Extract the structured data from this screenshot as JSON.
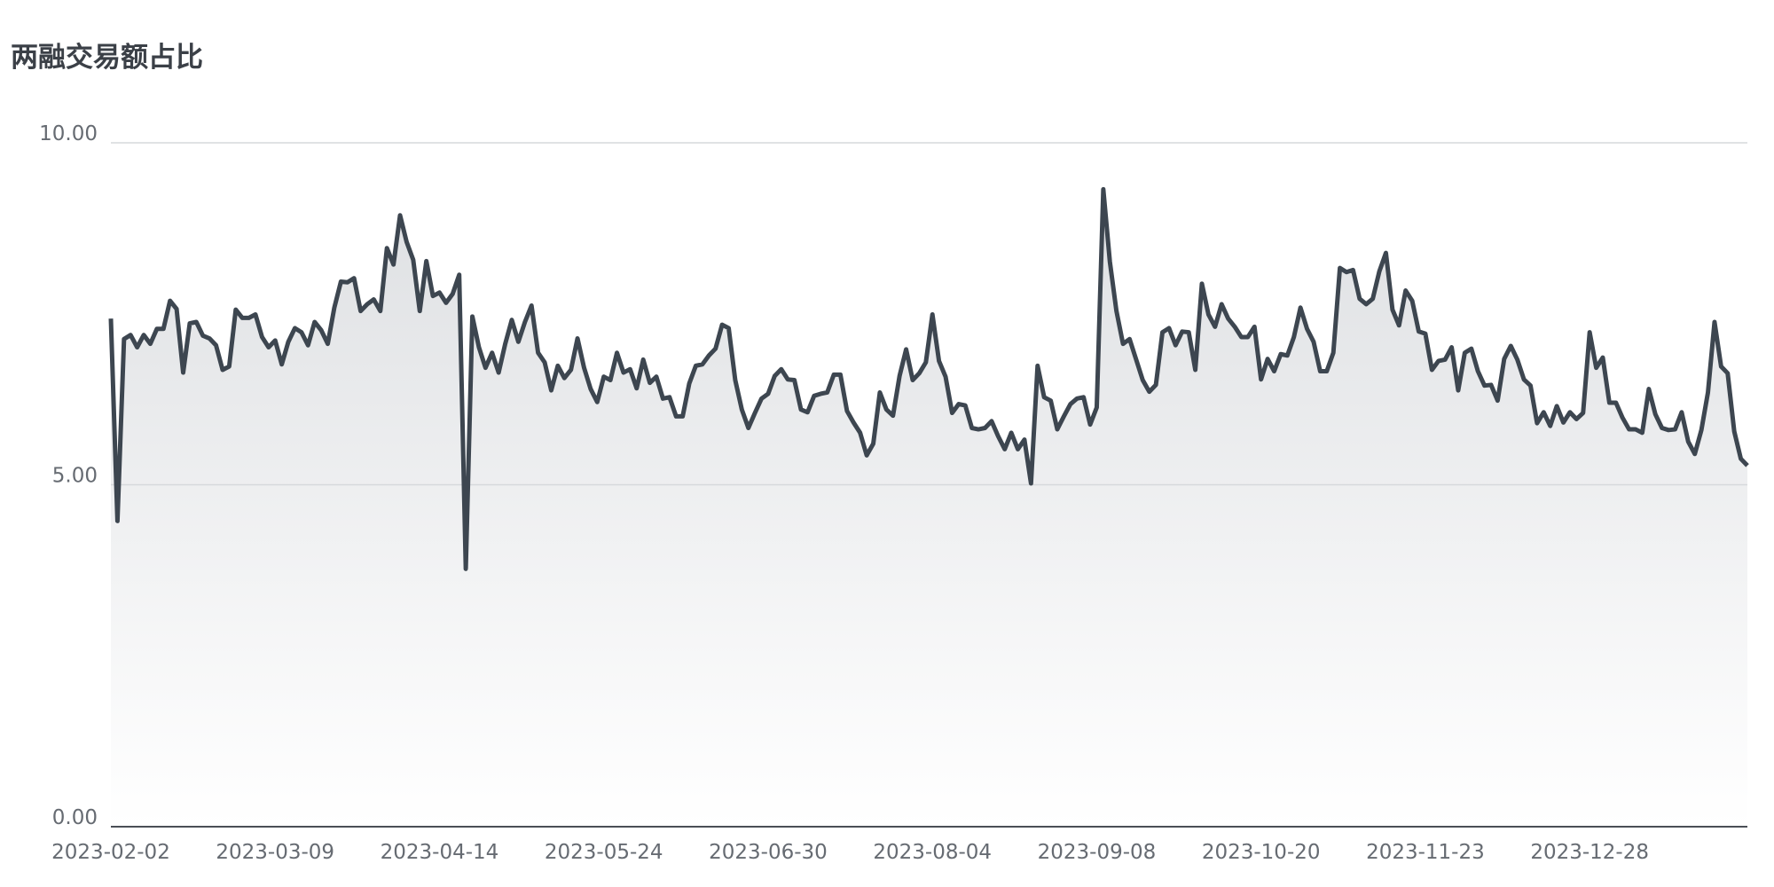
{
  "chart_data": {
    "type": "area",
    "title": "两融交易额占比",
    "categories": [
      "2023-02-02",
      null,
      null,
      null,
      null,
      null,
      null,
      null,
      null,
      null,
      null,
      null,
      null,
      null,
      null,
      null,
      null,
      null,
      null,
      null,
      null,
      null,
      null,
      null,
      null,
      "2023-03-09",
      null,
      null,
      null,
      null,
      null,
      null,
      null,
      null,
      null,
      null,
      null,
      null,
      null,
      null,
      null,
      null,
      null,
      null,
      null,
      null,
      null,
      null,
      null,
      null,
      "2023-04-14",
      null,
      null,
      null,
      null,
      null,
      null,
      null,
      null,
      null,
      null,
      null,
      null,
      null,
      null,
      null,
      null,
      null,
      null,
      null,
      null,
      null,
      null,
      null,
      null,
      "2023-05-24",
      null,
      null,
      null,
      null,
      null,
      null,
      null,
      null,
      null,
      null,
      null,
      null,
      null,
      null,
      null,
      null,
      null,
      null,
      null,
      null,
      null,
      null,
      null,
      null,
      "2023-06-30",
      null,
      null,
      null,
      null,
      null,
      null,
      null,
      null,
      null,
      null,
      null,
      null,
      null,
      null,
      null,
      null,
      null,
      null,
      null,
      null,
      null,
      null,
      null,
      null,
      "2023-08-04",
      null,
      null,
      null,
      null,
      null,
      null,
      null,
      null,
      null,
      null,
      null,
      null,
      null,
      null,
      null,
      null,
      null,
      null,
      null,
      null,
      null,
      null,
      null,
      null,
      "2023-09-08",
      null,
      null,
      null,
      null,
      null,
      null,
      null,
      null,
      null,
      null,
      null,
      null,
      null,
      null,
      null,
      null,
      null,
      null,
      null,
      null,
      null,
      null,
      null,
      null,
      "2023-10-20",
      null,
      null,
      null,
      null,
      null,
      null,
      null,
      null,
      null,
      null,
      null,
      null,
      null,
      null,
      null,
      null,
      null,
      null,
      null,
      null,
      null,
      null,
      null,
      null,
      "2023-11-23",
      null,
      null,
      null,
      null,
      null,
      null,
      null,
      null,
      null,
      null,
      null,
      null,
      null,
      null,
      null,
      null,
      null,
      null,
      null,
      null,
      null,
      null,
      null,
      null,
      "2023-12-28",
      null,
      null,
      null,
      null,
      null,
      null,
      null,
      null,
      null,
      null,
      null,
      null,
      null,
      null,
      null,
      null,
      null,
      null,
      null,
      null,
      null,
      null,
      null,
      null
    ],
    "values": [
      7.43,
      4.47,
      7.13,
      7.19,
      7.01,
      7.19,
      7.06,
      7.28,
      7.28,
      7.69,
      7.57,
      6.64,
      7.36,
      7.38,
      7.18,
      7.14,
      7.04,
      6.68,
      6.73,
      7.56,
      7.44,
      7.44,
      7.49,
      7.16,
      7.01,
      7.11,
      6.76,
      7.09,
      7.29,
      7.23,
      7.04,
      7.38,
      7.26,
      7.06,
      7.59,
      7.97,
      7.96,
      8.02,
      7.54,
      7.64,
      7.71,
      7.54,
      8.46,
      8.22,
      8.94,
      8.55,
      8.29,
      7.54,
      8.27,
      7.76,
      7.81,
      7.66,
      7.79,
      8.07,
      3.77,
      7.46,
      7.01,
      6.71,
      6.93,
      6.64,
      7.06,
      7.41,
      7.09,
      7.38,
      7.62,
      6.93,
      6.79,
      6.38,
      6.74,
      6.56,
      6.68,
      7.14,
      6.71,
      6.4,
      6.21,
      6.58,
      6.53,
      6.93,
      6.64,
      6.69,
      6.41,
      6.83,
      6.49,
      6.58,
      6.26,
      6.28,
      6.0,
      6.0,
      6.48,
      6.74,
      6.76,
      6.89,
      6.99,
      7.34,
      7.29,
      6.53,
      6.1,
      5.83,
      6.05,
      6.26,
      6.33,
      6.59,
      6.69,
      6.54,
      6.53,
      6.1,
      6.06,
      6.3,
      6.33,
      6.35,
      6.61,
      6.61,
      6.08,
      5.91,
      5.76,
      5.43,
      5.6,
      6.35,
      6.1,
      6.01,
      6.59,
      6.98,
      6.53,
      6.63,
      6.79,
      7.49,
      6.81,
      6.58,
      6.05,
      6.18,
      6.16,
      5.83,
      5.81,
      5.83,
      5.93,
      5.71,
      5.52,
      5.76,
      5.52,
      5.66,
      5.02,
      6.74,
      6.28,
      6.23,
      5.81,
      6.0,
      6.18,
      6.26,
      6.28,
      5.88,
      6.13,
      9.32,
      8.26,
      7.54,
      7.06,
      7.13,
      6.83,
      6.53,
      6.36,
      6.46,
      7.23,
      7.29,
      7.04,
      7.24,
      7.23,
      6.68,
      7.94,
      7.49,
      7.31,
      7.64,
      7.43,
      7.31,
      7.16,
      7.16,
      7.31,
      6.54,
      6.84,
      6.66,
      6.91,
      6.89,
      7.16,
      7.59,
      7.28,
      7.09,
      6.66,
      6.66,
      6.93,
      8.17,
      8.11,
      8.14,
      7.72,
      7.64,
      7.72,
      8.12,
      8.39,
      7.56,
      7.33,
      7.84,
      7.69,
      7.24,
      7.21,
      6.68,
      6.81,
      6.83,
      7.01,
      6.38,
      6.93,
      6.99,
      6.66,
      6.45,
      6.46,
      6.23,
      6.84,
      7.03,
      6.83,
      6.54,
      6.45,
      5.9,
      6.06,
      5.86,
      6.15,
      5.91,
      6.06,
      5.96,
      6.05,
      7.23,
      6.71,
      6.86,
      6.2,
      6.2,
      5.98,
      5.81,
      5.81,
      5.76,
      6.4,
      6.03,
      5.83,
      5.8,
      5.81,
      6.06,
      5.63,
      5.45,
      5.8,
      6.35,
      7.38,
      6.73,
      6.63,
      5.78,
      5.38,
      5.28
    ],
    "color": "#3d4650",
    "ylim": [
      0,
      10
    ],
    "yticks": [
      {
        "value": 0,
        "label": "0.00"
      },
      {
        "value": 5,
        "label": "5.00"
      },
      {
        "value": 10,
        "label": "10.00"
      }
    ],
    "grid": true
  }
}
